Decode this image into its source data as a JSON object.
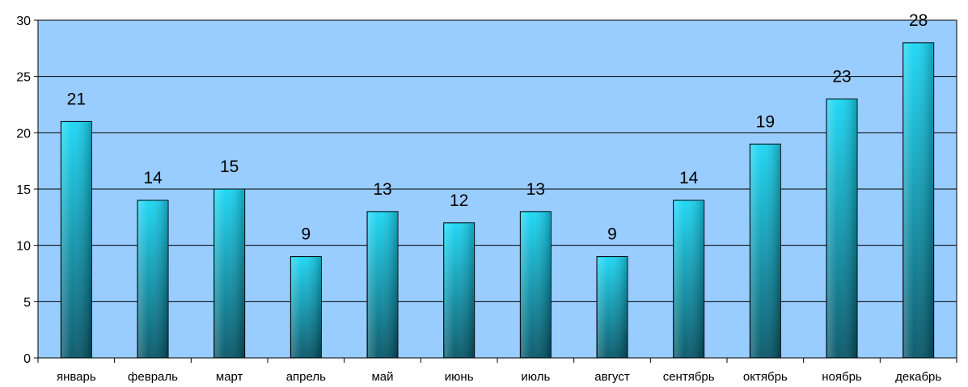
{
  "chart_data": {
    "type": "bar",
    "categories": [
      "январь",
      "февраль",
      "март",
      "апрель",
      "май",
      "июнь",
      "июль",
      "август",
      "сентябрь",
      "октябрь",
      "ноябрь",
      "декабрь"
    ],
    "values": [
      21,
      14,
      15,
      9,
      13,
      12,
      13,
      9,
      14,
      19,
      23,
      28
    ],
    "ylim": [
      0,
      30
    ],
    "yticks": [
      0,
      5,
      10,
      15,
      20,
      25,
      30
    ],
    "grid": true,
    "legend": "none",
    "data_labels": true,
    "colors": {
      "plot_background": "#99ccff",
      "bar_light": "#17d7f5",
      "bar_dark": "#045567",
      "gridline": "#000000"
    }
  }
}
